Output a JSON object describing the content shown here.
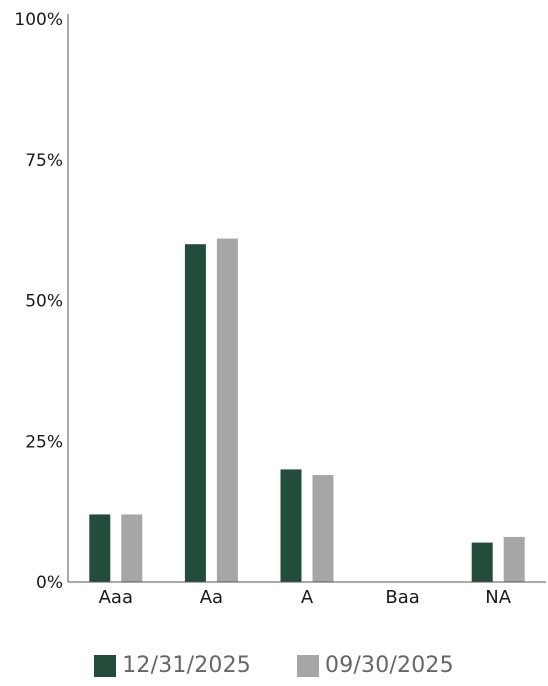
{
  "chart_data": {
    "type": "bar",
    "categories": [
      "Aaa",
      "Aa",
      "A",
      "Baa",
      "NA"
    ],
    "series": [
      {
        "name": "12/31/2025",
        "color": "#234d3a",
        "values": [
          12,
          60,
          20,
          0,
          7
        ]
      },
      {
        "name": "09/30/2025",
        "color": "#a6a6a6",
        "values": [
          12,
          61,
          19,
          0,
          8
        ]
      }
    ],
    "ylim": [
      0,
      100
    ],
    "yticks": [
      0,
      25,
      50,
      75,
      100
    ],
    "ytick_labels": [
      "0%",
      "25%",
      "50%",
      "75%",
      "100%"
    ],
    "grid": false,
    "legend_position": "bottom-center"
  },
  "legend": {
    "items": [
      {
        "label": "12/31/2025",
        "color": "#234d3a"
      },
      {
        "label": "09/30/2025",
        "color": "#a6a6a6"
      }
    ]
  }
}
